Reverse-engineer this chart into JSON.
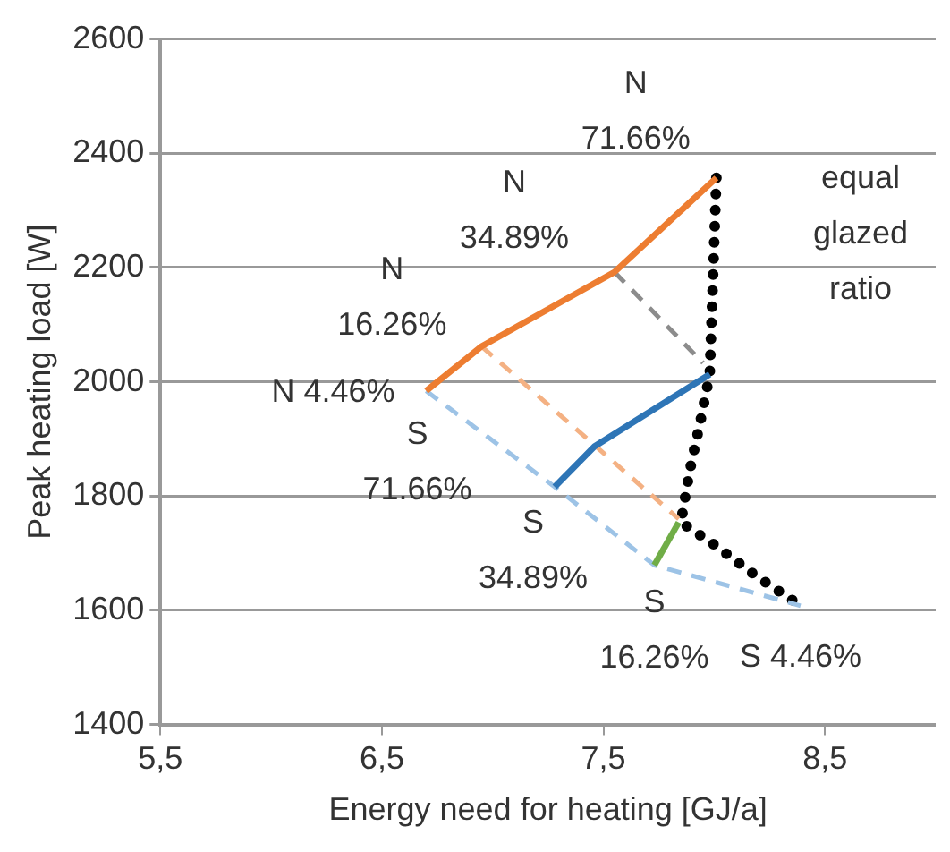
{
  "chart_data": {
    "type": "line",
    "xlabel": "Energy need for heating [GJ/a]",
    "ylabel": "Peak heating load [W]",
    "xlim": [
      5.5,
      9.0
    ],
    "xticks": [
      {
        "value": 5.5,
        "label": "5,5"
      },
      {
        "value": 6.5,
        "label": "6,5"
      },
      {
        "value": 7.5,
        "label": "7,5"
      },
      {
        "value": 8.5,
        "label": "8,5"
      }
    ],
    "ylim": [
      1400,
      2600
    ],
    "yticks": [
      1400,
      1600,
      1800,
      2000,
      2200,
      2400,
      2600
    ],
    "grid": "y",
    "legend": false,
    "marker": "none",
    "series": [
      {
        "line_style": "solid",
        "color": "#ed7d31",
        "x": [
          6.7,
          6.95,
          7.55,
          8.01
        ],
        "values": [
          1984,
          2062,
          2192,
          2357
        ]
      },
      {
        "line_style": "solid",
        "color": "#2e75b6",
        "x": [
          7.28,
          7.46,
          7.98
        ],
        "values": [
          1816,
          1887,
          2013
        ]
      },
      {
        "line_style": "solid",
        "color": "#70ad47",
        "x": [
          7.73,
          7.84
        ],
        "values": [
          1679,
          1754
        ]
      },
      {
        "line_style": "dashed",
        "color": "#8c8c8c",
        "x": [
          7.55,
          7.95
        ],
        "values": [
          2192,
          2033
        ]
      },
      {
        "line_style": "dashed",
        "color": "#f4b183",
        "x": [
          6.95,
          7.84
        ],
        "values": [
          2062,
          1760
        ]
      },
      {
        "line_style": "dashed",
        "color": "#9dc3e6",
        "x": [
          6.7,
          7.28,
          7.73,
          8.39
        ],
        "values": [
          1984,
          1816,
          1679,
          1608
        ]
      },
      {
        "line_style": "dotted",
        "color": "#000000",
        "x": [
          8.01,
          7.98,
          7.94,
          7.89,
          7.85,
          8.0,
          8.19,
          8.39
        ],
        "values": [
          2357,
          2013,
          1935,
          1845,
          1754,
          1715,
          1660,
          1608
        ]
      }
    ],
    "annotations": [
      {
        "text": "N\n71.66%",
        "x": 8.01,
        "y": 2357
      },
      {
        "text": "N\n34.89%",
        "x": 7.55,
        "y": 2192
      },
      {
        "text": "N\n16.26%",
        "x": 6.95,
        "y": 2062
      },
      {
        "text": "N 4.46%",
        "x": 6.7,
        "y": 1984
      },
      {
        "text": "S\n71.66%",
        "x": 6.7,
        "y": 1984
      },
      {
        "text": "S\n34.89%",
        "x": 7.28,
        "y": 1816
      },
      {
        "text": "S\n16.26%",
        "x": 7.73,
        "y": 1679
      },
      {
        "text": "S 4.46%",
        "x": 8.39,
        "y": 1608
      },
      "equal\nglazed\nratio"
    ]
  }
}
